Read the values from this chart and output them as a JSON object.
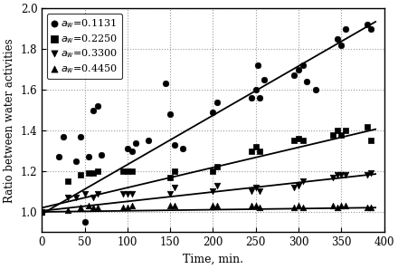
{
  "series": [
    {
      "label": "$a_w$=0.1131",
      "marker": "o",
      "color": "black",
      "scatter_x": [
        0,
        20,
        25,
        40,
        45,
        50,
        55,
        60,
        65,
        70,
        100,
        105,
        110,
        125,
        145,
        150,
        155,
        165,
        200,
        205,
        245,
        250,
        252,
        255,
        260,
        295,
        300,
        305,
        310,
        320,
        345,
        350,
        355,
        380,
        385
      ],
      "scatter_y": [
        1.0,
        1.27,
        1.37,
        1.25,
        1.37,
        0.95,
        1.27,
        1.5,
        1.52,
        1.28,
        1.31,
        1.3,
        1.34,
        1.35,
        1.63,
        1.48,
        1.33,
        1.31,
        1.49,
        1.54,
        1.56,
        1.6,
        1.72,
        1.56,
        1.65,
        1.67,
        1.7,
        1.72,
        1.64,
        1.6,
        1.85,
        1.82,
        1.9,
        1.92,
        1.9
      ],
      "line_x": [
        0,
        390
      ],
      "line_y": [
        0.99,
        1.934
      ]
    },
    {
      "label": "$a_w$=0.2250",
      "marker": "s",
      "color": "black",
      "scatter_x": [
        0,
        30,
        45,
        55,
        60,
        65,
        95,
        100,
        105,
        150,
        155,
        200,
        205,
        245,
        250,
        255,
        295,
        300,
        305,
        340,
        345,
        350,
        355,
        380,
        385
      ],
      "scatter_y": [
        1.0,
        1.15,
        1.18,
        1.19,
        1.19,
        1.2,
        1.2,
        1.2,
        1.2,
        1.17,
        1.2,
        1.2,
        1.22,
        1.3,
        1.32,
        1.3,
        1.35,
        1.36,
        1.35,
        1.38,
        1.4,
        1.38,
        1.4,
        1.42,
        1.35
      ],
      "line_x": [
        0,
        390
      ],
      "line_y": [
        1.02,
        1.406
      ]
    },
    {
      "label": "$a_w$=0.3300",
      "marker": "v",
      "color": "black",
      "scatter_x": [
        0,
        30,
        40,
        50,
        60,
        65,
        95,
        100,
        105,
        150,
        155,
        200,
        205,
        245,
        250,
        255,
        295,
        300,
        305,
        340,
        345,
        350,
        355,
        380,
        385
      ],
      "scatter_y": [
        1.0,
        1.07,
        1.07,
        1.09,
        1.07,
        1.09,
        1.09,
        1.09,
        1.09,
        1.09,
        1.12,
        1.1,
        1.13,
        1.1,
        1.12,
        1.1,
        1.12,
        1.13,
        1.15,
        1.17,
        1.18,
        1.18,
        1.18,
        1.18,
        1.19
      ],
      "line_x": [
        0,
        390
      ],
      "line_y": [
        1.005,
        1.186
      ]
    },
    {
      "label": "$a_w$=0.4450",
      "marker": "^",
      "color": "black",
      "scatter_x": [
        0,
        30,
        45,
        55,
        60,
        65,
        95,
        100,
        105,
        150,
        155,
        200,
        205,
        245,
        250,
        255,
        295,
        300,
        305,
        340,
        345,
        350,
        355,
        380,
        385
      ],
      "scatter_y": [
        1.0,
        1.01,
        1.02,
        1.03,
        1.02,
        1.02,
        1.02,
        1.02,
        1.03,
        1.03,
        1.03,
        1.03,
        1.03,
        1.03,
        1.03,
        1.02,
        1.02,
        1.03,
        1.02,
        1.03,
        1.02,
        1.03,
        1.03,
        1.02,
        1.02
      ],
      "line_x": [
        0,
        390
      ],
      "line_y": [
        1.0,
        1.021
      ]
    }
  ],
  "xlabel": "Time, min.",
  "ylabel": "Ratio between water activities",
  "xlim": [
    0,
    400
  ],
  "ylim": [
    0.9,
    2.0
  ],
  "yticks": [
    1.0,
    1.2,
    1.4,
    1.6,
    1.8,
    2.0
  ],
  "xticks": [
    0,
    50,
    100,
    150,
    200,
    250,
    300,
    350,
    400
  ],
  "background_color": "#ffffff",
  "grid_color": "#999999",
  "figsize": [
    4.4,
    2.97
  ],
  "dpi": 100
}
